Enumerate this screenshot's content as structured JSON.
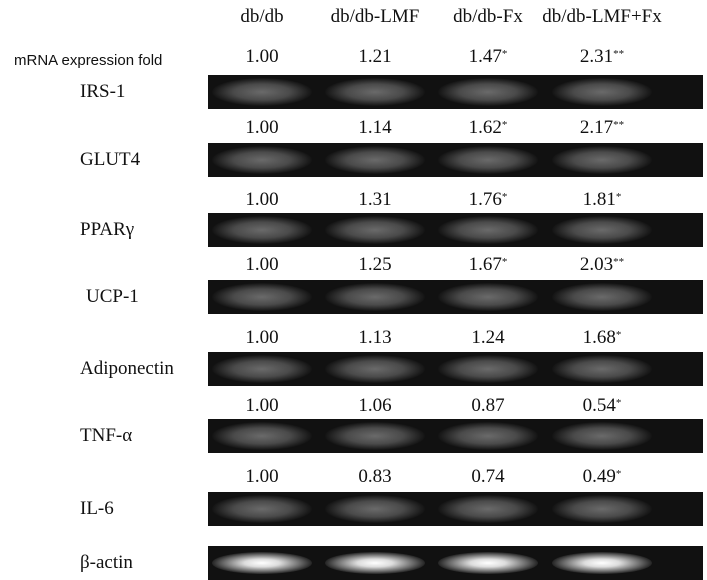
{
  "header": {
    "columns": [
      "db/db",
      "db/db-LMF",
      "db/db-Fx",
      "db/db-LMF+Fx"
    ],
    "row_label": "mRNA expression fold"
  },
  "rows": [
    {
      "label": "IRS-1",
      "values": [
        {
          "number": "1.00"
        },
        {
          "number": "1.21"
        },
        {
          "number": "1.47",
          "mark": "*"
        },
        {
          "number": "2.31",
          "mark": "**"
        }
      ]
    },
    {
      "label": "GLUT4",
      "values": [
        {
          "number": "1.00"
        },
        {
          "number": "1.14"
        },
        {
          "number": "1.62",
          "mark": "*"
        },
        {
          "number": "2.17",
          "mark": "**"
        }
      ]
    },
    {
      "label": "PPARγ",
      "values": [
        {
          "number": "1.00"
        },
        {
          "number": "1.31"
        },
        {
          "number": "1.76",
          "mark": "*"
        },
        {
          "number": "1.81",
          "mark": "*"
        }
      ]
    },
    {
      "label": "UCP-1",
      "values": [
        {
          "number": "1.00"
        },
        {
          "number": "1.25"
        },
        {
          "number": "1.67",
          "mark": "*"
        },
        {
          "number": "2.03",
          "mark": "**"
        }
      ]
    },
    {
      "label": "Adiponectin",
      "values": [
        {
          "number": "1.00"
        },
        {
          "number": "1.13"
        },
        {
          "number": "1.24"
        },
        {
          "number": "1.68",
          "mark": "*"
        }
      ]
    },
    {
      "label": "TNF-α",
      "values": [
        {
          "number": "1.00"
        },
        {
          "number": "1.06"
        },
        {
          "number": "0.87"
        },
        {
          "number": "0.54",
          "mark": "*"
        }
      ]
    },
    {
      "label": "IL-6",
      "values": [
        {
          "number": "1.00"
        },
        {
          "number": "0.83"
        },
        {
          "number": "0.74"
        },
        {
          "number": "0.49",
          "mark": "*"
        }
      ]
    },
    {
      "label": "β-actin"
    }
  ]
}
